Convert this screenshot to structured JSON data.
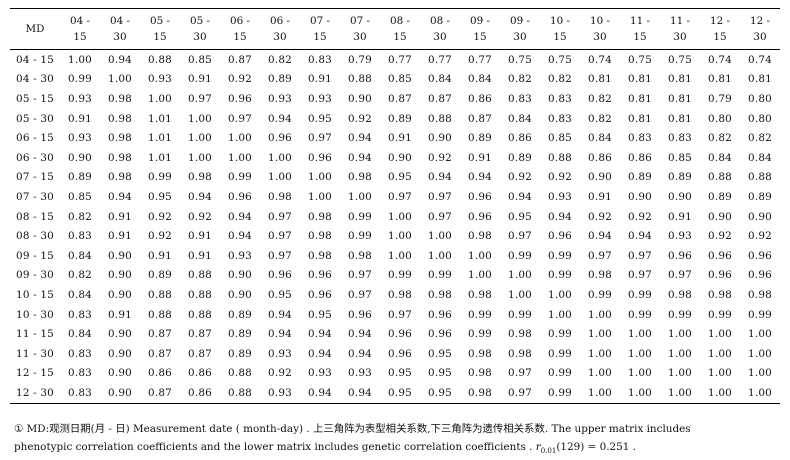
{
  "table": {
    "corner": "MD",
    "columns": [
      "04 - 15",
      "04 - 30",
      "05 - 15",
      "05 - 30",
      "06 - 15",
      "06 - 30",
      "07 - 15",
      "07 - 30",
      "08 - 15",
      "08 - 30",
      "09 - 15",
      "09 - 30",
      "10 - 15",
      "10 - 30",
      "11 - 15",
      "11 - 30",
      "12 - 15",
      "12 - 30"
    ],
    "rows": [
      {
        "label": "04 - 15",
        "values": [
          "1.00",
          "0.94",
          "0.88",
          "0.85",
          "0.87",
          "0.82",
          "0.83",
          "0.79",
          "0.77",
          "0.77",
          "0.77",
          "0.75",
          "0.75",
          "0.74",
          "0.75",
          "0.75",
          "0.74",
          "0.74"
        ]
      },
      {
        "label": "04 - 30",
        "values": [
          "0.99",
          "1.00",
          "0.93",
          "0.91",
          "0.92",
          "0.89",
          "0.91",
          "0.88",
          "0.85",
          "0.84",
          "0.84",
          "0.82",
          "0.82",
          "0.81",
          "0.81",
          "0.81",
          "0.81",
          "0.81"
        ]
      },
      {
        "label": "05 - 15",
        "values": [
          "0.93",
          "0.98",
          "1.00",
          "0.97",
          "0.96",
          "0.93",
          "0.93",
          "0.90",
          "0.87",
          "0.87",
          "0.86",
          "0.83",
          "0.83",
          "0.82",
          "0.81",
          "0.81",
          "0.79",
          "0.80"
        ]
      },
      {
        "label": "05 - 30",
        "values": [
          "0.91",
          "0.98",
          "1.01",
          "1.00",
          "0.97",
          "0.94",
          "0.95",
          "0.92",
          "0.89",
          "0.88",
          "0.87",
          "0.84",
          "0.83",
          "0.82",
          "0.81",
          "0.81",
          "0.80",
          "0.80"
        ]
      },
      {
        "label": "06 - 15",
        "values": [
          "0.93",
          "0.98",
          "1.01",
          "1.00",
          "1.00",
          "0.96",
          "0.97",
          "0.94",
          "0.91",
          "0.90",
          "0.89",
          "0.86",
          "0.85",
          "0.84",
          "0.83",
          "0.83",
          "0.82",
          "0.82"
        ]
      },
      {
        "label": "06 - 30",
        "values": [
          "0.90",
          "0.98",
          "1.01",
          "1.00",
          "1.00",
          "1.00",
          "0.96",
          "0.94",
          "0.90",
          "0.92",
          "0.91",
          "0.89",
          "0.88",
          "0.86",
          "0.86",
          "0.85",
          "0.84",
          "0.84"
        ]
      },
      {
        "label": "07 - 15",
        "values": [
          "0.89",
          "0.98",
          "0.99",
          "0.98",
          "0.99",
          "1.00",
          "1.00",
          "0.98",
          "0.95",
          "0.94",
          "0.94",
          "0.92",
          "0.92",
          "0.90",
          "0.89",
          "0.89",
          "0.88",
          "0.88"
        ]
      },
      {
        "label": "07 - 30",
        "values": [
          "0.85",
          "0.94",
          "0.95",
          "0.94",
          "0.96",
          "0.98",
          "1.00",
          "1.00",
          "0.97",
          "0.97",
          "0.96",
          "0.94",
          "0.93",
          "0.91",
          "0.90",
          "0.90",
          "0.89",
          "0.89"
        ]
      },
      {
        "label": "08 - 15",
        "values": [
          "0.82",
          "0.91",
          "0.92",
          "0.92",
          "0.94",
          "0.97",
          "0.98",
          "0.99",
          "1.00",
          "0.97",
          "0.96",
          "0.95",
          "0.94",
          "0.92",
          "0.92",
          "0.91",
          "0.90",
          "0.90"
        ]
      },
      {
        "label": "08 - 30",
        "values": [
          "0.83",
          "0.91",
          "0.92",
          "0.91",
          "0.94",
          "0.97",
          "0.98",
          "0.99",
          "1.00",
          "1.00",
          "0.98",
          "0.97",
          "0.96",
          "0.94",
          "0.94",
          "0.93",
          "0.92",
          "0.92"
        ]
      },
      {
        "label": "09 - 15",
        "values": [
          "0.84",
          "0.90",
          "0.91",
          "0.91",
          "0.93",
          "0.97",
          "0.98",
          "0.98",
          "1.00",
          "1.00",
          "1.00",
          "0.99",
          "0.99",
          "0.97",
          "0.97",
          "0.96",
          "0.96",
          "0.96"
        ]
      },
      {
        "label": "09 - 30",
        "values": [
          "0.82",
          "0.90",
          "0.89",
          "0.88",
          "0.90",
          "0.96",
          "0.96",
          "0.97",
          "0.99",
          "0.99",
          "1.00",
          "1.00",
          "0.99",
          "0.98",
          "0.97",
          "0.97",
          "0.96",
          "0.96"
        ]
      },
      {
        "label": "10 - 15",
        "values": [
          "0.84",
          "0.90",
          "0.88",
          "0.88",
          "0.90",
          "0.95",
          "0.96",
          "0.97",
          "0.98",
          "0.98",
          "0.98",
          "1.00",
          "1.00",
          "0.99",
          "0.99",
          "0.98",
          "0.98",
          "0.98"
        ]
      },
      {
        "label": "10 - 30",
        "values": [
          "0.83",
          "0.91",
          "0.88",
          "0.88",
          "0.89",
          "0.94",
          "0.95",
          "0.96",
          "0.97",
          "0.96",
          "0.99",
          "0.99",
          "1.00",
          "1.00",
          "0.99",
          "0.99",
          "0.99",
          "0.99"
        ]
      },
      {
        "label": "11 - 15",
        "values": [
          "0.84",
          "0.90",
          "0.87",
          "0.87",
          "0.89",
          "0.94",
          "0.94",
          "0.94",
          "0.96",
          "0.96",
          "0.99",
          "0.98",
          "0.99",
          "1.00",
          "1.00",
          "1.00",
          "1.00",
          "1.00"
        ]
      },
      {
        "label": "11 - 30",
        "values": [
          "0.83",
          "0.90",
          "0.87",
          "0.87",
          "0.89",
          "0.93",
          "0.94",
          "0.94",
          "0.96",
          "0.95",
          "0.98",
          "0.98",
          "0.99",
          "1.00",
          "1.00",
          "1.00",
          "1.00",
          "1.00"
        ]
      },
      {
        "label": "12 - 15",
        "values": [
          "0.83",
          "0.90",
          "0.86",
          "0.86",
          "0.88",
          "0.92",
          "0.93",
          "0.93",
          "0.95",
          "0.95",
          "0.98",
          "0.97",
          "0.99",
          "1.00",
          "1.00",
          "1.00",
          "1.00",
          "1.00"
        ]
      },
      {
        "label": "12 - 30",
        "values": [
          "0.83",
          "0.90",
          "0.87",
          "0.86",
          "0.88",
          "0.93",
          "0.94",
          "0.94",
          "0.95",
          "0.95",
          "0.98",
          "0.97",
          "0.99",
          "1.00",
          "1.00",
          "1.00",
          "1.00",
          "1.00"
        ]
      }
    ]
  },
  "footnote": {
    "line1": "① MD:观测日期(月 - 日) Measurement date ( month-day) . 上三角阵为表型相关系数,下三角阵为遗传相关系数. The upper matrix includes",
    "line2_text": "phenotypic correlation coefficients and the lower matrix includes genetic correlation coefficients . ",
    "line2_sym": "r",
    "line2_sub": "0.01",
    "line2_tail": "(129) = 0.251 ."
  }
}
